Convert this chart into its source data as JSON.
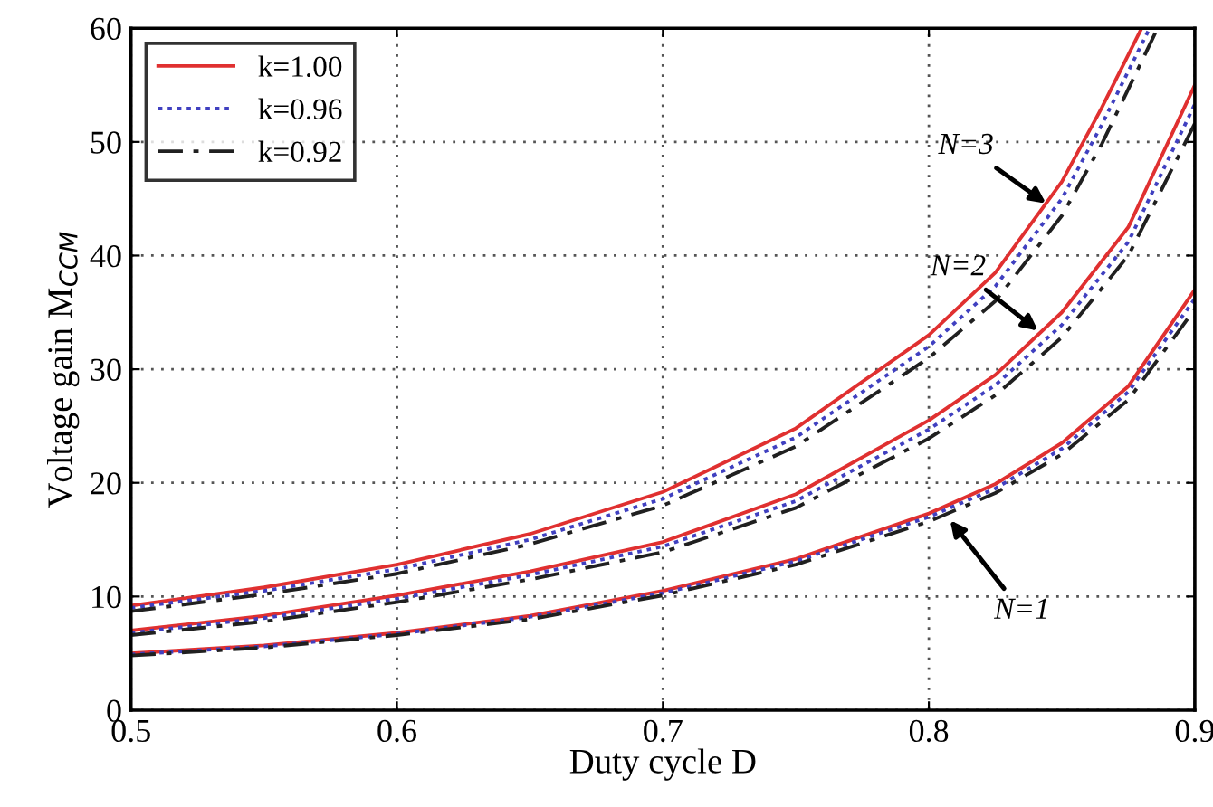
{
  "chart_data": {
    "type": "line",
    "xlabel": "Duty cycle D",
    "ylabel": "Voltage gain M$_{CCM}$",
    "xlim": [
      0.5,
      0.9
    ],
    "ylim": [
      0,
      60
    ],
    "xticks": [
      0.5,
      0.6,
      0.7,
      0.8,
      0.9
    ],
    "yticks": [
      0,
      10,
      20,
      30,
      40,
      50,
      60
    ],
    "grid": true,
    "legend": "top left",
    "marker": "none",
    "annotations": [
      {
        "text": "N=3",
        "x": 0.844,
        "y": 44.6
      },
      {
        "text": "N=2",
        "x": 0.841,
        "y": 33.4
      },
      {
        "text": "N=1",
        "x": 0.808,
        "y": 16.7
      }
    ],
    "series": [
      {
        "name": "k=1.00",
        "color": "#e03030",
        "line_style": "solid",
        "x": [
          0.5,
          0.55,
          0.6,
          0.65,
          0.7,
          0.75,
          0.8,
          0.825,
          0.85,
          0.875,
          0.9
        ],
        "values": [
          5.0,
          5.7,
          6.8,
          8.3,
          10.5,
          13.3,
          17.3,
          19.9,
          23.5,
          28.5,
          37.0
        ]
      },
      {
        "name": "k=0.96",
        "color": "#4040c0",
        "line_style": "dotted",
        "x": [
          0.5,
          0.55,
          0.6,
          0.65,
          0.7,
          0.75,
          0.8,
          0.825,
          0.85,
          0.875,
          0.9
        ],
        "values": [
          4.9,
          5.6,
          6.7,
          8.2,
          10.3,
          13.1,
          17.0,
          19.5,
          23.0,
          28.0,
          36.2
        ]
      },
      {
        "name": "k=0.92",
        "color": "#202020",
        "line_style": "dashed",
        "x": [
          0.5,
          0.55,
          0.6,
          0.65,
          0.7,
          0.75,
          0.8,
          0.825,
          0.85,
          0.875,
          0.9
        ],
        "values": [
          4.8,
          5.5,
          6.6,
          8.0,
          10.1,
          12.8,
          16.6,
          19.1,
          22.5,
          27.3,
          35.3
        ]
      },
      {
        "color": "#e03030",
        "line_style": "solid",
        "x": [
          0.5,
          0.55,
          0.6,
          0.65,
          0.7,
          0.75,
          0.8,
          0.825,
          0.85,
          0.875,
          0.9
        ],
        "values": [
          7.0,
          8.3,
          10.1,
          12.2,
          14.8,
          19.0,
          25.5,
          29.5,
          35.0,
          42.5,
          55.0
        ]
      },
      {
        "color": "#4040c0",
        "line_style": "dotted",
        "x": [
          0.5,
          0.55,
          0.6,
          0.65,
          0.7,
          0.75,
          0.8,
          0.825,
          0.85,
          0.875,
          0.9
        ],
        "values": [
          6.8,
          8.1,
          9.8,
          11.9,
          14.4,
          18.4,
          24.7,
          28.6,
          33.9,
          41.2,
          53.3
        ]
      },
      {
        "color": "#202020",
        "line_style": "dashed",
        "x": [
          0.5,
          0.55,
          0.6,
          0.65,
          0.7,
          0.75,
          0.8,
          0.825,
          0.85,
          0.875,
          0.9
        ],
        "values": [
          6.6,
          7.8,
          9.5,
          11.5,
          13.9,
          17.8,
          23.9,
          27.7,
          32.8,
          40.0,
          51.6
        ]
      },
      {
        "color": "#e03030",
        "line_style": "solid",
        "x": [
          0.5,
          0.55,
          0.6,
          0.65,
          0.7,
          0.75,
          0.8,
          0.825,
          0.85,
          0.865,
          0.88
        ],
        "values": [
          9.2,
          10.8,
          12.8,
          15.5,
          19.2,
          24.8,
          33.0,
          38.5,
          46.5,
          53.0,
          60.0
        ]
      },
      {
        "color": "#4040c0",
        "line_style": "dotted",
        "x": [
          0.5,
          0.55,
          0.6,
          0.65,
          0.7,
          0.75,
          0.8,
          0.825,
          0.85,
          0.865,
          0.883
        ],
        "values": [
          9.0,
          10.5,
          12.4,
          15.0,
          18.6,
          24.0,
          32.0,
          37.3,
          45.0,
          51.5,
          60.0
        ]
      },
      {
        "color": "#202020",
        "line_style": "dashed",
        "x": [
          0.5,
          0.55,
          0.6,
          0.65,
          0.7,
          0.75,
          0.8,
          0.825,
          0.85,
          0.865,
          0.886
        ],
        "values": [
          8.7,
          10.2,
          12.0,
          14.6,
          18.0,
          23.2,
          31.0,
          36.0,
          43.5,
          49.8,
          60.0
        ]
      }
    ]
  }
}
